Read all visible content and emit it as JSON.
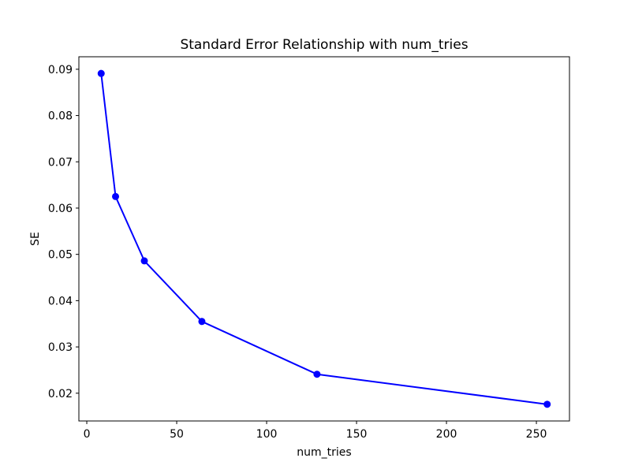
{
  "figure": {
    "background": "#ffffff",
    "plot_background": "#ffffff",
    "spine_color": "#000000"
  },
  "chart_data": {
    "type": "line",
    "title": "Standard Error Relationship with num_tries",
    "xlabel": "num_tries",
    "ylabel": "SE",
    "x": [
      8,
      16,
      32,
      64,
      128,
      256
    ],
    "y": [
      0.0891,
      0.0625,
      0.0486,
      0.0355,
      0.0241,
      0.0176
    ],
    "line_color": "#0000ff",
    "marker": "circle",
    "marker_radius": 4.5,
    "line_width": 2,
    "xlim": [
      -4.4,
      268.4
    ],
    "ylim": [
      0.014,
      0.0927
    ],
    "xticks": [
      0,
      50,
      100,
      150,
      200,
      250
    ],
    "yticks": [
      0.02,
      0.03,
      0.04,
      0.05,
      0.06,
      0.07,
      0.08,
      0.09
    ],
    "ytick_decimals": 2,
    "grid": false,
    "legend": null
  }
}
